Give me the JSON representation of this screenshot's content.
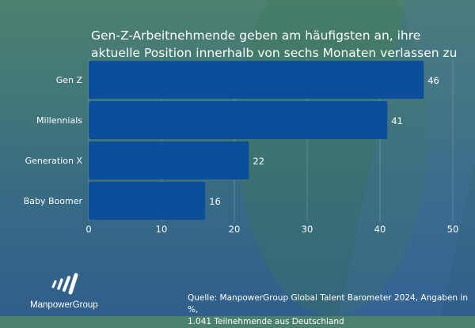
{
  "chart_data": {
    "type": "bar",
    "orientation": "horizontal",
    "title": "Gen-Z-Arbeitnehmende geben am häufigsten an, ihre aktuelle Position innerhalb von sechs Monaten verlassen zu wollen.",
    "categories": [
      "Gen Z",
      "Millennials",
      "Generation X",
      "Baby Boomer"
    ],
    "values": [
      46,
      41,
      22,
      16
    ],
    "xlim": [
      0,
      50
    ],
    "xticks": [
      0,
      10,
      20,
      30,
      40,
      50
    ],
    "grid": true,
    "bar_color": "#0b4f9a"
  },
  "footer": {
    "source_line1": "Quelle: ManpowerGroup Global Talent Barometer 2024, Angaben in %,",
    "source_line2": "1.041 Teilnehmende aus Deutschland"
  },
  "logo": {
    "text": "ManpowerGroup"
  }
}
